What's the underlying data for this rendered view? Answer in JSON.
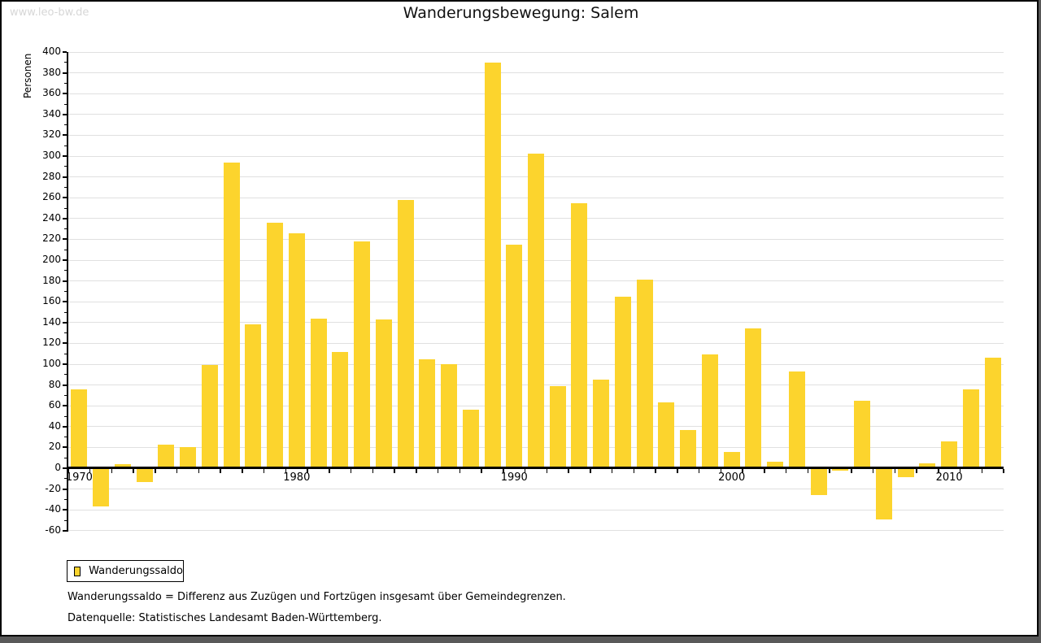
{
  "page": {
    "watermark": "www.leo-bw.de",
    "title": "Wanderungsbewegung: Salem"
  },
  "chart_data": {
    "type": "bar",
    "title": "Wanderungsbewegung: Salem",
    "xlabel": "",
    "ylabel": "Personen",
    "ylim": [
      -60,
      400
    ],
    "ytick_step": 20,
    "yminortick_step": 10,
    "grid": true,
    "legend_position": "bottom-left",
    "x_axis_shown_labels": [
      "1970",
      "1980",
      "1990",
      "2000",
      "2010"
    ],
    "categories": [
      1970,
      1971,
      1972,
      1973,
      1974,
      1975,
      1976,
      1977,
      1978,
      1979,
      1980,
      1981,
      1982,
      1983,
      1984,
      1985,
      1986,
      1987,
      1988,
      1989,
      1990,
      1991,
      1992,
      1993,
      1994,
      1995,
      1996,
      1997,
      1998,
      1999,
      2000,
      2001,
      2002,
      2003,
      2004,
      2005,
      2006,
      2007,
      2008,
      2009,
      2010,
      2011,
      2012
    ],
    "series": [
      {
        "name": "Wanderungssaldo",
        "color": "#fcd42d",
        "values": [
          76,
          -36,
          4,
          -13,
          23,
          20,
          99,
          294,
          138,
          236,
          226,
          144,
          112,
          218,
          143,
          258,
          105,
          100,
          56,
          390,
          215,
          302,
          79,
          255,
          85,
          165,
          181,
          63,
          37,
          109,
          16,
          134,
          6,
          93,
          -25,
          -2,
          65,
          -49,
          -8,
          5,
          26,
          76,
          106
        ]
      }
    ]
  },
  "legend": {
    "label": "Wanderungssaldo"
  },
  "footnotes": {
    "line1": "Wanderungssaldo = Differenz aus Zuzügen und Fortzügen insgesamt über Gemeindegrenzen.",
    "line2": "Datenquelle: Statistisches Landesamt Baden-Württemberg."
  },
  "colors": {
    "bar": "#fcd42d",
    "gridline": "#e0e0e0",
    "axis": "#000000",
    "watermark": "#d7d7d7",
    "frame_shadow": "#595959"
  }
}
